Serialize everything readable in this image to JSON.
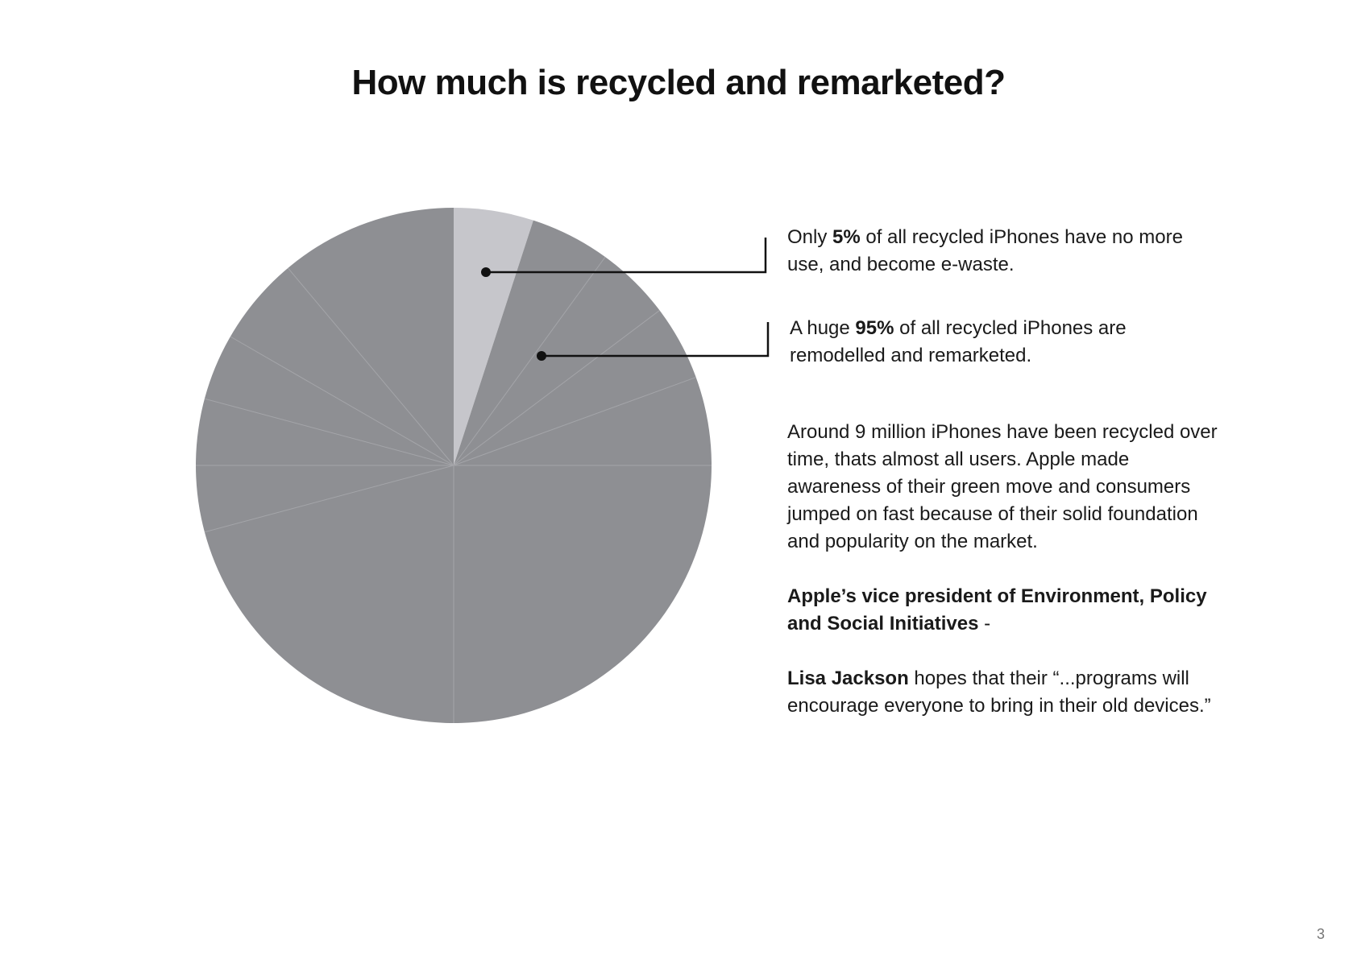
{
  "title": "How much is recycled and remarketed?",
  "chart_data": {
    "type": "pie",
    "slices": [
      {
        "label": "e-waste",
        "value": 5,
        "color": "#c6c6cb"
      },
      {
        "label": "remodelled and remarketed",
        "value": 95,
        "color": "#8e8f93"
      }
    ]
  },
  "callouts": [
    {
      "pre": "Only ",
      "bold": "5%",
      "post": " of all recycled iPhones have no more use, and become e-waste."
    },
    {
      "pre": "A huge ",
      "bold": "95%",
      "post": " of all recycled iPhones are remodelled and remarketed."
    }
  ],
  "body": {
    "paragraph1": "Around 9 million iPhones have been recycled over time, thats almost all users. Apple made awareness of their green move and consumers jumped on fast because of their solid foundation and popularity on the market.",
    "paragraph2_bold": "Apple’s vice president of Environment, Policy and Social Initiatives",
    "paragraph2_rest": " -",
    "paragraph3_bold": "Lisa Jackson",
    "paragraph3_rest": " hopes that their “...programs will encourage everyone to bring in their old devices.”"
  },
  "page_number": "3"
}
